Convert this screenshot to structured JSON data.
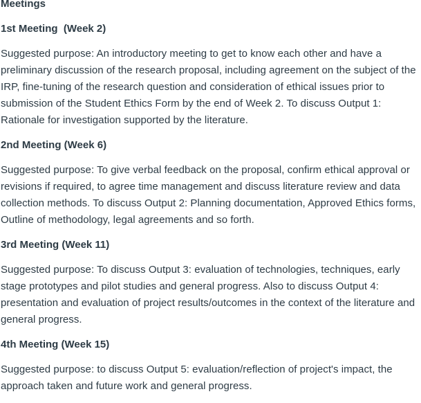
{
  "page_title": "Meetings",
  "meetings": [
    {
      "heading": "1st Meeting  (Week 2)",
      "text": "Suggested purpose: An introductory meeting to get to know each other and have a preliminary discussion of the research proposal, including agreement on the subject of the IRP, fine-tuning of the research question and consideration of ethical issues prior to submission of the Student Ethics Form by the end of Week 2. To discuss Output 1: Rationale for investigation supported by the literature."
    },
    {
      "heading": "2nd Meeting (Week 6)",
      "text": "Suggested purpose: To give verbal feedback on the proposal, confirm ethical approval or revisions if required, to agree time management and discuss literature review and data collection methods. To discuss Output 2: Planning documentation, Approved Ethics forms, Outline of methodology, legal agreements and so forth."
    },
    {
      "heading": "3rd Meeting (Week 11)",
      "text": "Suggested purpose: To discuss Output 3: evaluation of technologies, techniques, early stage prototypes and pilot studies and general progress. Also to discuss Output 4: presentation and evaluation of project results/outcomes in the context of the literature and general progress."
    },
    {
      "heading": "4th Meeting (Week 15)",
      "text": "Suggested purpose: to discuss Output 5: evaluation/reflection of project's impact, the approach taken and future work and general progress."
    }
  ]
}
